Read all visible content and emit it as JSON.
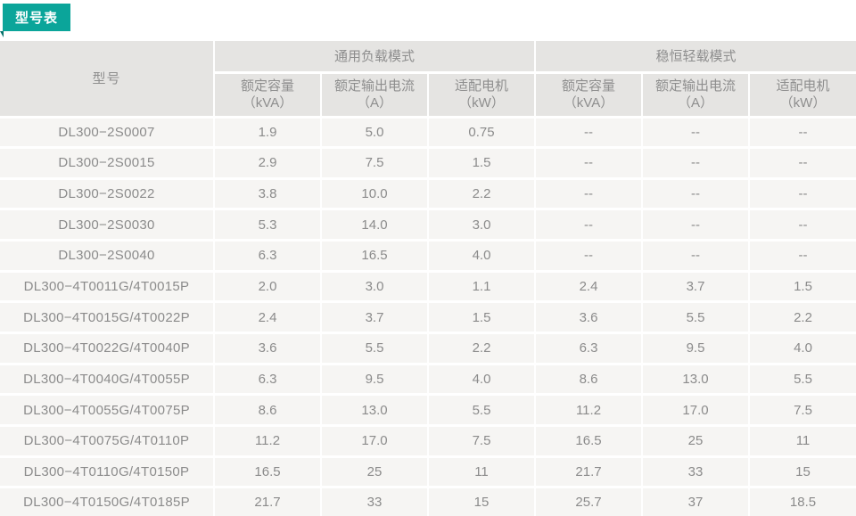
{
  "tab": {
    "label": "型号表"
  },
  "colors": {
    "accent_teal": "#0ba59a",
    "accent_teal_dark": "#07716a",
    "header_bg": "#e5e4e2",
    "row_bg": "#f6f5f3",
    "grid_white": "#ffffff",
    "header_text": "#8e8e8e",
    "cell_text": "#8b8b8b"
  },
  "table": {
    "model_header": "型号",
    "groups": [
      {
        "label": "通用负载模式",
        "columns": [
          {
            "title": "额定容量",
            "unit": "（kVA）"
          },
          {
            "title": "额定输出电流",
            "unit": "（A）"
          },
          {
            "title": "适配电机",
            "unit": "（kW）"
          }
        ]
      },
      {
        "label": "稳恒轻载模式",
        "columns": [
          {
            "title": "额定容量",
            "unit": "（kVA）"
          },
          {
            "title": "额定输出电流",
            "unit": "（A）"
          },
          {
            "title": "适配电机",
            "unit": "（kW）"
          }
        ]
      }
    ],
    "empty_placeholder": "--",
    "rows": [
      {
        "model": "DL300−2S0007",
        "values": [
          "1.9",
          "5.0",
          "0.75",
          "--",
          "--",
          "--"
        ]
      },
      {
        "model": "DL300−2S0015",
        "values": [
          "2.9",
          "7.5",
          "1.5",
          "--",
          "--",
          "--"
        ]
      },
      {
        "model": "DL300−2S0022",
        "values": [
          "3.8",
          "10.0",
          "2.2",
          "--",
          "--",
          "--"
        ]
      },
      {
        "model": "DL300−2S0030",
        "values": [
          "5.3",
          "14.0",
          "3.0",
          "--",
          "--",
          "--"
        ]
      },
      {
        "model": "DL300−2S0040",
        "values": [
          "6.3",
          "16.5",
          "4.0",
          "--",
          "--",
          "--"
        ]
      },
      {
        "model": "DL300−4T0011G/4T0015P",
        "values": [
          "2.0",
          "3.0",
          "1.1",
          "2.4",
          "3.7",
          "1.5"
        ]
      },
      {
        "model": "DL300−4T0015G/4T0022P",
        "values": [
          "2.4",
          "3.7",
          "1.5",
          "3.6",
          "5.5",
          "2.2"
        ]
      },
      {
        "model": "DL300−4T0022G/4T0040P",
        "values": [
          "3.6",
          "5.5",
          "2.2",
          "6.3",
          "9.5",
          "4.0"
        ]
      },
      {
        "model": "DL300−4T0040G/4T0055P",
        "values": [
          "6.3",
          "9.5",
          "4.0",
          "8.6",
          "13.0",
          "5.5"
        ]
      },
      {
        "model": "DL300−4T0055G/4T0075P",
        "values": [
          "8.6",
          "13.0",
          "5.5",
          "11.2",
          "17.0",
          "7.5"
        ]
      },
      {
        "model": "DL300−4T0075G/4T0110P",
        "values": [
          "11.2",
          "17.0",
          "7.5",
          "16.5",
          "25",
          "11"
        ]
      },
      {
        "model": "DL300−4T0110G/4T0150P",
        "values": [
          "16.5",
          "25",
          "11",
          "21.7",
          "33",
          "15"
        ]
      },
      {
        "model": "DL300−4T0150G/4T0185P",
        "values": [
          "21.7",
          "33",
          "15",
          "25.7",
          "37",
          "18.5"
        ]
      }
    ]
  }
}
